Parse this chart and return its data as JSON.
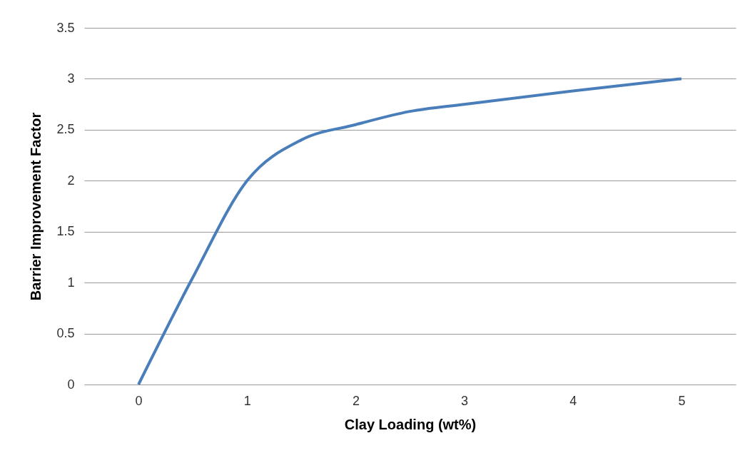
{
  "chart_data": {
    "type": "line",
    "xlabel": "Clay Loading (wt%)",
    "ylabel": "Barrier Improvement  Factor",
    "x": [
      0,
      0.5,
      1,
      1.5,
      2,
      2.5,
      3,
      4,
      5
    ],
    "series": [
      {
        "color": "#4a7ebb",
        "values": [
          0,
          1.05,
          2,
          2.4,
          2.55,
          2.68,
          2.75,
          2.88,
          3
        ]
      }
    ],
    "xlim": [
      -0.5,
      5.5
    ],
    "xticks": [
      0,
      1,
      2,
      3,
      4,
      5
    ],
    "ylim": [
      0,
      3.5
    ],
    "yticks": [
      0,
      0.5,
      1,
      1.5,
      2,
      2.5,
      3,
      3.5
    ],
    "grid": "y",
    "marker": "none",
    "line_style": "solid"
  }
}
